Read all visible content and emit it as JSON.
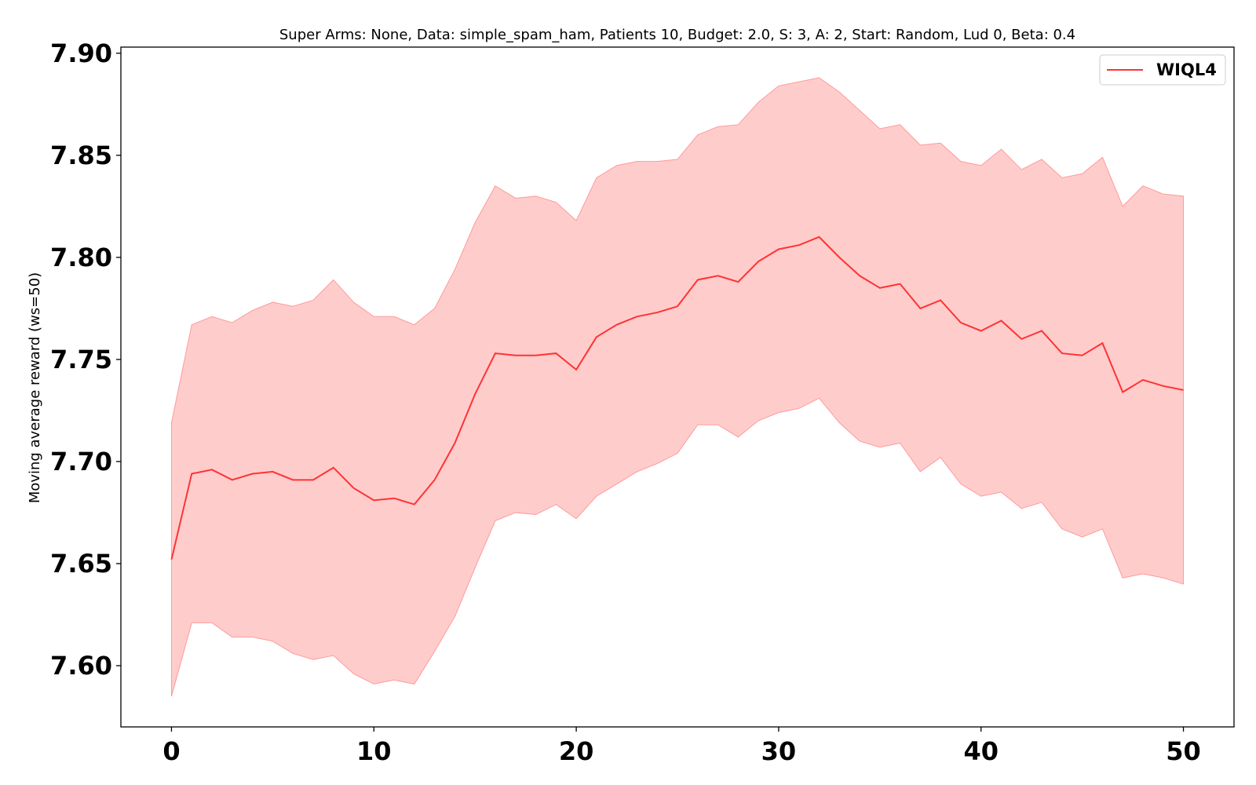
{
  "chart_data": {
    "type": "line",
    "title": "Super Arms: None, Data: simple_spam_ham, Patients 10, Budget: 2.0, S: 3, A: 2, Start: Random, Lud 0, Beta: 0.4",
    "xlabel": "",
    "ylabel": "Moving average reward (ws=50)",
    "xlim": [
      -2.5,
      52.5
    ],
    "ylim": [
      7.57,
      7.903
    ],
    "xticks": [
      0,
      10,
      20,
      30,
      40,
      50
    ],
    "xtick_labels": [
      "0",
      "10",
      "20",
      "30",
      "40",
      "50"
    ],
    "yticks": [
      7.6,
      7.65,
      7.7,
      7.75,
      7.8,
      7.85,
      7.9
    ],
    "ytick_labels": [
      "7.60",
      "7.65",
      "7.70",
      "7.75",
      "7.80",
      "7.85",
      "7.90"
    ],
    "grid": false,
    "legend_position": "top-right",
    "x": [
      0,
      1,
      2,
      3,
      4,
      5,
      6,
      7,
      8,
      9,
      10,
      11,
      12,
      13,
      14,
      15,
      16,
      17,
      18,
      19,
      20,
      21,
      22,
      23,
      24,
      25,
      26,
      27,
      28,
      29,
      30,
      31,
      32,
      33,
      34,
      35,
      36,
      37,
      38,
      39,
      40,
      41,
      42,
      43,
      44,
      45,
      46,
      47,
      48,
      49,
      50
    ],
    "series": [
      {
        "name": "WIQL4",
        "color": "#ff3333",
        "band_color": "#ff9999",
        "values": [
          7.652,
          7.694,
          7.696,
          7.691,
          7.694,
          7.695,
          7.691,
          7.691,
          7.697,
          7.687,
          7.681,
          7.682,
          7.679,
          7.691,
          7.709,
          7.733,
          7.753,
          7.752,
          7.752,
          7.753,
          7.745,
          7.761,
          7.767,
          7.771,
          7.773,
          7.776,
          7.789,
          7.791,
          7.788,
          7.798,
          7.804,
          7.806,
          7.81,
          7.8,
          7.791,
          7.785,
          7.787,
          7.775,
          7.779,
          7.768,
          7.764,
          7.769,
          7.76,
          7.764,
          7.753,
          7.752,
          7.758,
          7.734,
          7.74,
          7.737,
          7.735
        ],
        "upper": [
          7.719,
          7.767,
          7.771,
          7.768,
          7.774,
          7.778,
          7.776,
          7.779,
          7.789,
          7.778,
          7.771,
          7.771,
          7.767,
          7.775,
          7.794,
          7.817,
          7.835,
          7.829,
          7.83,
          7.827,
          7.818,
          7.839,
          7.845,
          7.847,
          7.847,
          7.848,
          7.86,
          7.864,
          7.865,
          7.876,
          7.884,
          7.886,
          7.888,
          7.881,
          7.872,
          7.863,
          7.865,
          7.855,
          7.856,
          7.847,
          7.845,
          7.853,
          7.843,
          7.848,
          7.839,
          7.841,
          7.849,
          7.825,
          7.835,
          7.831,
          7.83
        ],
        "lower": [
          7.585,
          7.621,
          7.621,
          7.614,
          7.614,
          7.612,
          7.606,
          7.603,
          7.605,
          7.596,
          7.591,
          7.593,
          7.591,
          7.607,
          7.624,
          7.648,
          7.671,
          7.675,
          7.674,
          7.679,
          7.672,
          7.683,
          7.689,
          7.695,
          7.699,
          7.704,
          7.718,
          7.718,
          7.712,
          7.72,
          7.724,
          7.726,
          7.731,
          7.719,
          7.71,
          7.707,
          7.709,
          7.695,
          7.702,
          7.689,
          7.683,
          7.685,
          7.677,
          7.68,
          7.667,
          7.663,
          7.667,
          7.643,
          7.645,
          7.643,
          7.64
        ]
      }
    ]
  }
}
